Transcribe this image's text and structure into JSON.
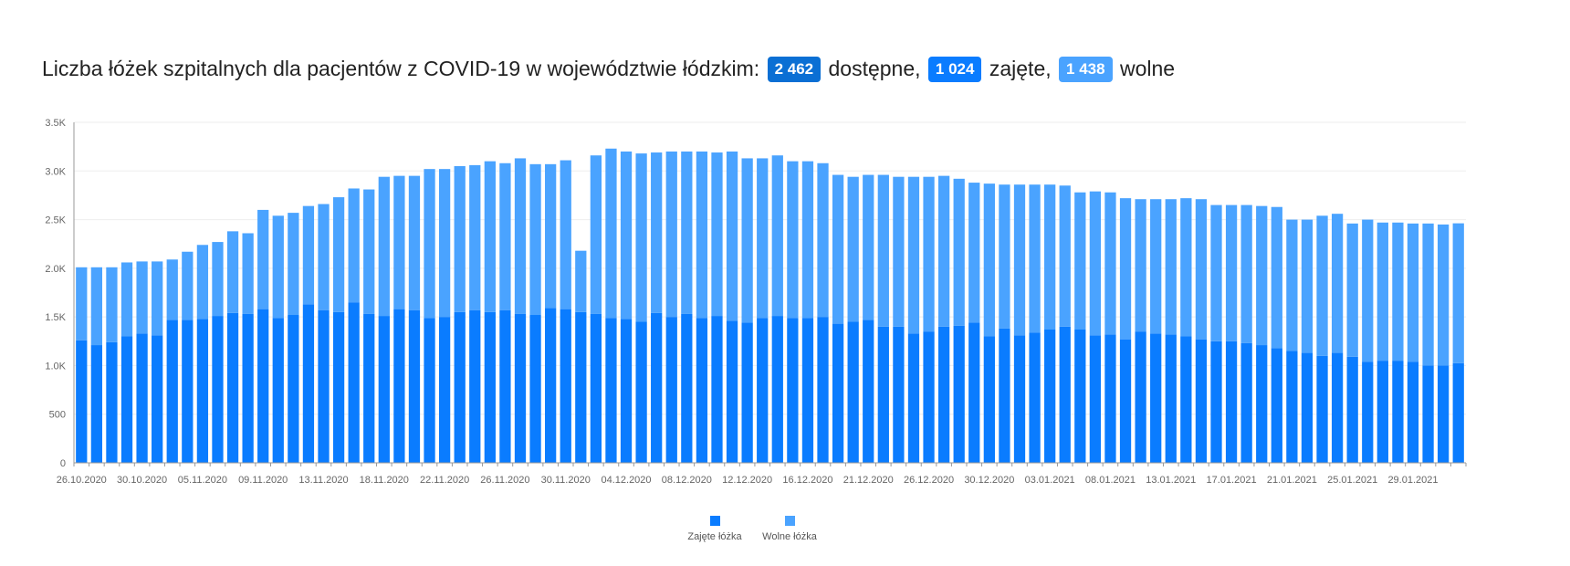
{
  "title": {
    "text": "Liczba łóżek szpitalnych dla pacjentów z COVID-19 w województwie łódzkim:",
    "total_value": "2 462",
    "total_word": "dostępne,",
    "occupied_value": "1 024",
    "occupied_word": "zajęte,",
    "free_value": "1 438",
    "free_word": "wolne"
  },
  "colors": {
    "occupied": "#0a7cff",
    "free": "#4aa3ff",
    "grid": "#eeeeee",
    "axis": "#999999"
  },
  "chart_data": {
    "type": "bar",
    "stacked": true,
    "ylim": [
      0,
      3500
    ],
    "yticks": [
      0,
      500,
      1000,
      1500,
      2000,
      2500,
      3000,
      3500
    ],
    "ytick_labels": [
      "0",
      "500",
      "1.0K",
      "1.5K",
      "2.0K",
      "2.5K",
      "3.0K",
      "3.5K"
    ],
    "x_tick_labels": [
      "26.10.2020",
      "30.10.2020",
      "05.11.2020",
      "09.11.2020",
      "13.11.2020",
      "18.11.2020",
      "22.11.2020",
      "26.11.2020",
      "30.11.2020",
      "04.12.2020",
      "08.12.2020",
      "12.12.2020",
      "16.12.2020",
      "21.12.2020",
      "26.12.2020",
      "30.12.2020",
      "03.01.2021",
      "08.01.2021",
      "13.01.2021",
      "17.01.2021",
      "21.01.2021",
      "25.01.2021",
      "29.01.2021"
    ],
    "x_tick_positions": [
      0,
      4,
      8,
      12,
      16,
      20,
      24,
      28,
      32,
      36,
      40,
      44,
      48,
      52,
      56,
      60,
      64,
      68,
      72,
      76,
      80,
      84,
      88
    ],
    "legend_position": "bottom",
    "grid": true,
    "series": [
      {
        "name": "Zajęte łóżka",
        "values": [
          1260,
          1210,
          1240,
          1300,
          1330,
          1310,
          1470,
          1470,
          1480,
          1510,
          1540,
          1530,
          1580,
          1490,
          1520,
          1630,
          1570,
          1550,
          1650,
          1530,
          1510,
          1580,
          1570,
          1490,
          1500,
          1550,
          1570,
          1550,
          1570,
          1530,
          1520,
          1590,
          1580,
          1550,
          1530,
          1490,
          1480,
          1450,
          1540,
          1500,
          1530,
          1490,
          1510,
          1460,
          1440,
          1490,
          1510,
          1490,
          1490,
          1500,
          1430,
          1450,
          1470,
          1400,
          1400,
          1330,
          1350,
          1400,
          1410,
          1440,
          1300,
          1380,
          1310,
          1340,
          1370,
          1400,
          1370,
          1310,
          1320,
          1270,
          1350,
          1330,
          1320,
          1300,
          1270,
          1250,
          1250,
          1230,
          1210,
          1180,
          1150,
          1130,
          1100,
          1130,
          1090,
          1040,
          1050,
          1050,
          1040,
          1000,
          1000,
          1024
        ]
      },
      {
        "name": "Wolne łóżka",
        "values": [
          750,
          800,
          770,
          760,
          740,
          760,
          620,
          700,
          760,
          760,
          840,
          830,
          1020,
          1050,
          1050,
          1010,
          1090,
          1180,
          1170,
          1280,
          1430,
          1370,
          1380,
          1530,
          1520,
          1500,
          1490,
          1550,
          1510,
          1600,
          1550,
          1480,
          1530,
          630,
          1630,
          1740,
          1720,
          1730,
          1650,
          1700,
          1670,
          1710,
          1680,
          1740,
          1690,
          1640,
          1650,
          1610,
          1610,
          1580,
          1530,
          1490,
          1490,
          1560,
          1540,
          1610,
          1590,
          1550,
          1510,
          1440,
          1570,
          1480,
          1550,
          1520,
          1490,
          1450,
          1410,
          1480,
          1460,
          1450,
          1360,
          1380,
          1390,
          1420,
          1440,
          1400,
          1400,
          1420,
          1430,
          1450,
          1350,
          1370,
          1440,
          1430,
          1370,
          1460,
          1420,
          1420,
          1420,
          1460,
          1450,
          1438
        ]
      }
    ]
  },
  "legend": [
    {
      "label": "Zajęte łóżka",
      "color": "#0a7cff"
    },
    {
      "label": "Wolne łóżka",
      "color": "#4aa3ff"
    }
  ]
}
